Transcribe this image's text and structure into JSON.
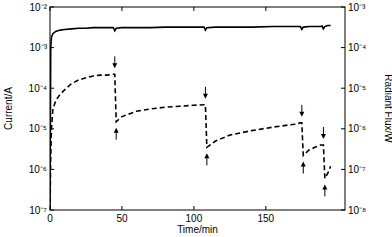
{
  "chart_data": {
    "type": "line",
    "log": "y",
    "x_label": "Time/min",
    "y_label": "Current/A",
    "y2_label": "Radiant Flux/W",
    "x": [
      0,
      0.5,
      1,
      2,
      4,
      7,
      10,
      15,
      20,
      25,
      30,
      35,
      40,
      44,
      45,
      46,
      50,
      60,
      70,
      80,
      90,
      100,
      107,
      108,
      109,
      115,
      125,
      140,
      155,
      170,
      174,
      175,
      176,
      180,
      184,
      188,
      189,
      190,
      191,
      193,
      195
    ],
    "series": [
      {
        "color": "#000000",
        "line_style": "solid",
        "values": [
          1e-07,
          0.001,
          0.0018,
          0.0022,
          0.0025,
          0.0027,
          0.0028,
          0.0029,
          0.003,
          0.003,
          0.0031,
          0.0031,
          0.0031,
          0.0031,
          0.0026,
          0.003,
          0.0031,
          0.0031,
          0.0031,
          0.0032,
          0.0032,
          0.0032,
          0.0032,
          0.0027,
          0.0031,
          0.0032,
          0.0032,
          0.0032,
          0.0033,
          0.0033,
          0.0033,
          0.0028,
          0.0032,
          0.0033,
          0.0033,
          0.0033,
          0.0034,
          0.0029,
          0.0033,
          0.0035,
          0.0035
        ]
      },
      {
        "color": "#000000",
        "line_style": "dashed",
        "axis": "y2",
        "values": [
          1e-08,
          2e-07,
          1e-06,
          3e-06,
          5e-06,
          7e-06,
          9e-06,
          1.3e-05,
          1.6e-05,
          1.8e-05,
          2e-05,
          2.1e-05,
          2.1e-05,
          2.2e-05,
          2.2e-05,
          1.5e-06,
          2e-06,
          2.7e-06,
          3.1e-06,
          3.4e-06,
          3.6e-06,
          3.8e-06,
          3.9e-06,
          3.9e-06,
          3.5e-07,
          5e-07,
          7e-07,
          9e-07,
          1.1e-06,
          1.3e-06,
          1.4e-06,
          1.4e-06,
          2.2e-07,
          3e-07,
          3.5e-07,
          4e-07,
          4e-07,
          4e-07,
          6e-08,
          8e-08,
          1.2e-07
        ]
      }
    ],
    "xlim": [
      0,
      205
    ],
    "xticks": [
      0,
      50,
      100,
      150
    ],
    "ylim": [
      1e-07,
      0.01
    ],
    "yticks": [
      {
        "value": 1e-07,
        "label": "10⁻⁷"
      },
      {
        "value": 1e-06,
        "label": "10⁻⁶"
      },
      {
        "value": 1e-05,
        "label": "10⁻⁵"
      },
      {
        "value": 0.0001,
        "label": "10⁻⁴"
      },
      {
        "value": 0.001,
        "label": "10⁻³"
      },
      {
        "value": 0.01,
        "label": "10⁻²"
      }
    ],
    "y2lim": [
      1e-08,
      0.001
    ],
    "y2ticks": [
      {
        "value": 1e-08,
        "label": "10⁻⁸"
      },
      {
        "value": 1e-07,
        "label": "10⁻⁷"
      },
      {
        "value": 1e-06,
        "label": "10⁻⁶"
      },
      {
        "value": 1e-05,
        "label": "10⁻⁵"
      },
      {
        "value": 0.0001,
        "label": "10⁻⁴"
      },
      {
        "value": 0.001,
        "label": "10⁻³"
      }
    ]
  }
}
